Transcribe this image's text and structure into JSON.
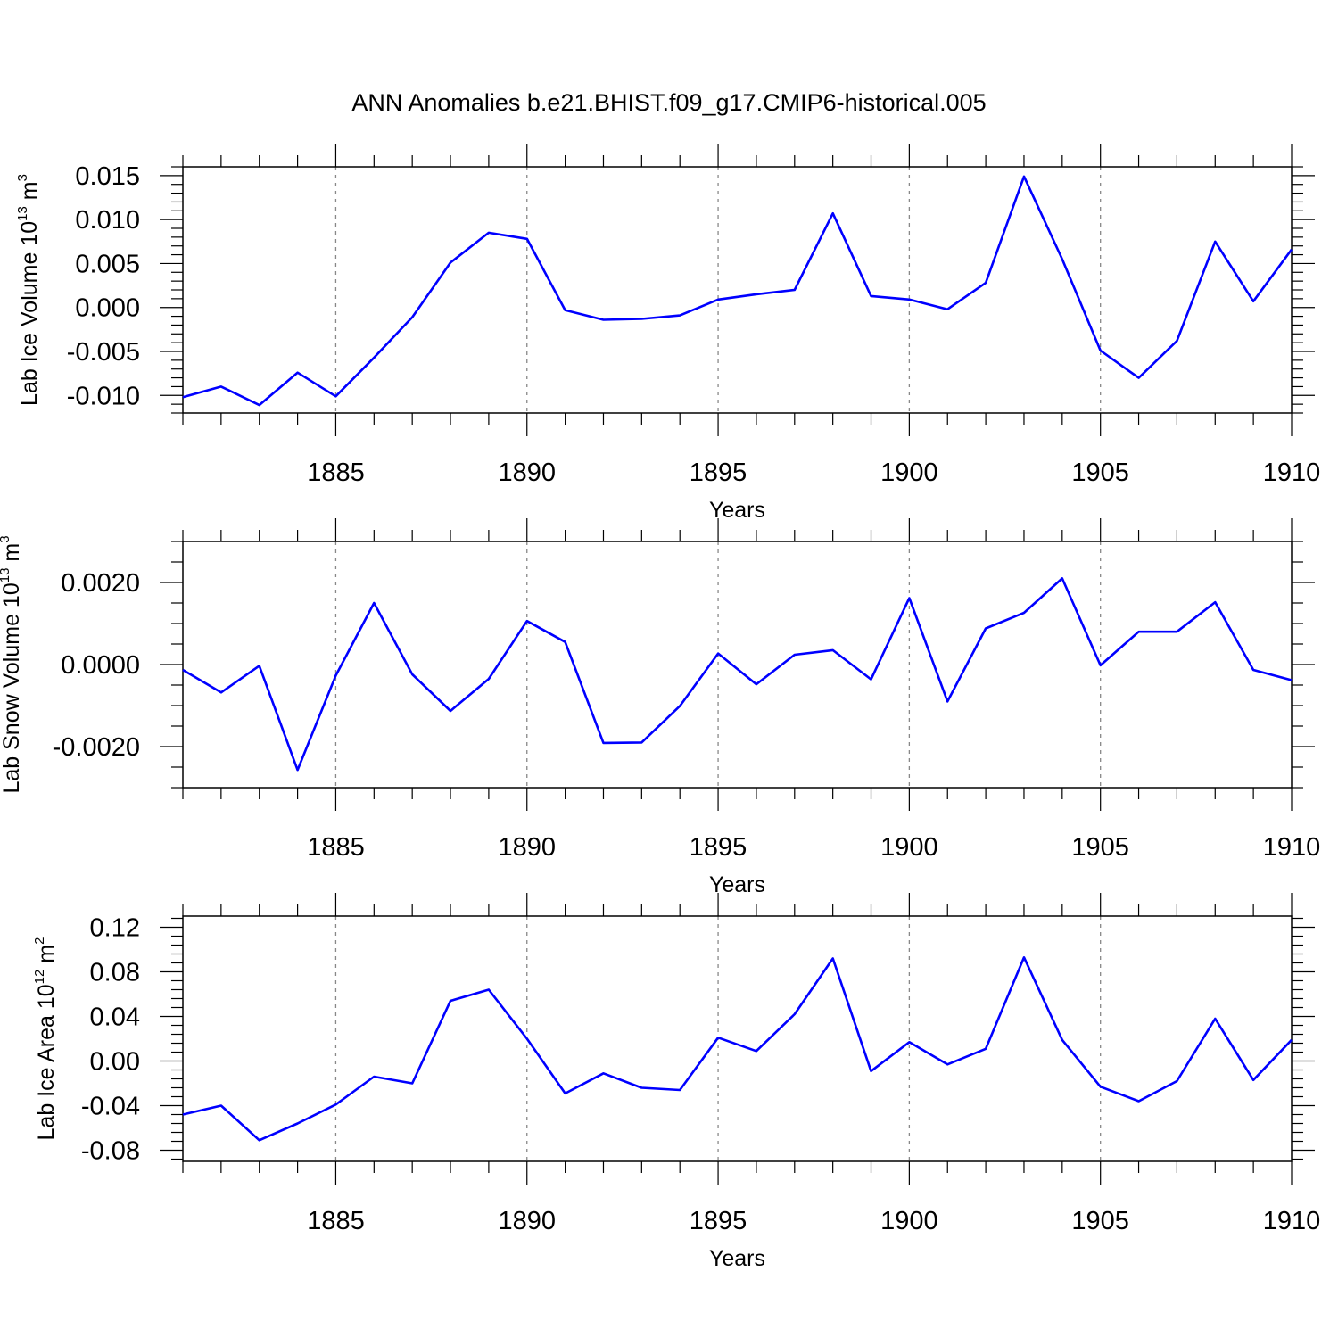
{
  "title": "ANN Anomalies b.e21.BHIST.f09_g17.CMIP6-historical.005",
  "line_color": "#0000ff",
  "chart_data": [
    {
      "type": "line",
      "ylabel": {
        "base": "Lab Ice Volume 10",
        "exp": "13",
        "unit": " m",
        "unit_exp": "3"
      },
      "xlabel": "Years",
      "xlim": [
        1881,
        1910
      ],
      "ylim": [
        -0.012,
        0.016
      ],
      "yticks": [
        -0.01,
        -0.005,
        0.0,
        0.005,
        0.01,
        0.015
      ],
      "ytick_labels": [
        "-0.010",
        "-0.005",
        "0.000",
        "0.005",
        "0.010",
        "0.015"
      ],
      "yminor_step": 0.001,
      "xticks": [
        1885,
        1890,
        1895,
        1900,
        1905,
        1910
      ],
      "xtick_labels": [
        "1885",
        "1890",
        "1895",
        "1900",
        "1905",
        "1910"
      ],
      "grid": "vertical dashed at major x ticks",
      "series": [
        {
          "x": [
            1881,
            1882,
            1883,
            1884,
            1885,
            1886,
            1887,
            1888,
            1889,
            1890,
            1891,
            1892,
            1893,
            1894,
            1895,
            1896,
            1897,
            1898,
            1899,
            1900,
            1901,
            1902,
            1903,
            1904,
            1905,
            1906,
            1907,
            1908,
            1909,
            1910
          ],
          "values": [
            -0.0102,
            -0.009,
            -0.0111,
            -0.0074,
            -0.0101,
            -0.0057,
            -0.0011,
            0.0051,
            0.0085,
            0.0078,
            -0.0003,
            -0.0014,
            -0.0013,
            -0.0009,
            0.0009,
            0.0015,
            0.002,
            0.0107,
            0.0013,
            0.0009,
            -0.0002,
            0.0028,
            0.0149,
            0.0055,
            -0.0049,
            -0.008,
            -0.0038,
            0.0075,
            0.0007,
            0.0066
          ]
        }
      ]
    },
    {
      "type": "line",
      "ylabel": {
        "base": "Lab Snow Volume 10",
        "exp": "13",
        "unit": " m",
        "unit_exp": "3"
      },
      "xlabel": "Years",
      "xlim": [
        1881,
        1910
      ],
      "ylim": [
        -0.003,
        0.003
      ],
      "yticks": [
        -0.002,
        0.0,
        0.002
      ],
      "ytick_labels": [
        "-0.0020",
        "0.0000",
        "0.0020"
      ],
      "yminor_step": 0.0005,
      "xticks": [
        1885,
        1890,
        1895,
        1900,
        1905,
        1910
      ],
      "xtick_labels": [
        "1885",
        "1890",
        "1895",
        "1900",
        "1905",
        "1910"
      ],
      "grid": "vertical dashed at major x ticks",
      "series": [
        {
          "x": [
            1881,
            1882,
            1883,
            1884,
            1885,
            1886,
            1887,
            1888,
            1889,
            1890,
            1891,
            1892,
            1893,
            1894,
            1895,
            1896,
            1897,
            1898,
            1899,
            1900,
            1901,
            1902,
            1903,
            1904,
            1905,
            1906,
            1907,
            1908,
            1909,
            1910
          ],
          "values": [
            -0.00013,
            -0.00068,
            -3e-05,
            -0.00257,
            -0.00027,
            0.0015,
            -0.00024,
            -0.00113,
            -0.00035,
            0.00106,
            0.00055,
            -0.00191,
            -0.0019,
            -0.00101,
            0.00027,
            -0.00048,
            0.00024,
            0.00035,
            -0.00036,
            0.00162,
            -0.0009,
            0.00088,
            0.00126,
            0.0021,
            -2e-05,
            0.0008,
            0.0008,
            0.00152,
            -0.00013,
            -0.00038
          ]
        }
      ]
    },
    {
      "type": "line",
      "ylabel": {
        "base": "Lab Ice Area 10",
        "exp": "12",
        "unit": " m",
        "unit_exp": "2"
      },
      "xlabel": "Years",
      "xlim": [
        1881,
        1910
      ],
      "ylim": [
        -0.09,
        0.13
      ],
      "yticks": [
        -0.08,
        -0.04,
        0.0,
        0.04,
        0.08,
        0.12
      ],
      "ytick_labels": [
        "-0.08",
        "-0.04",
        "0.00",
        "0.04",
        "0.08",
        "0.12"
      ],
      "yminor_step": 0.008,
      "xticks": [
        1885,
        1890,
        1895,
        1900,
        1905,
        1910
      ],
      "xtick_labels": [
        "1885",
        "1890",
        "1895",
        "1900",
        "1905",
        "1910"
      ],
      "grid": "vertical dashed at major x ticks",
      "series": [
        {
          "x": [
            1881,
            1882,
            1883,
            1884,
            1885,
            1886,
            1887,
            1888,
            1889,
            1890,
            1891,
            1892,
            1893,
            1894,
            1895,
            1896,
            1897,
            1898,
            1899,
            1900,
            1901,
            1902,
            1903,
            1904,
            1905,
            1906,
            1907,
            1908,
            1909,
            1910
          ],
          "values": [
            -0.048,
            -0.04,
            -0.071,
            -0.056,
            -0.039,
            -0.014,
            -0.02,
            0.054,
            0.064,
            0.02,
            -0.029,
            -0.011,
            -0.024,
            -0.026,
            0.021,
            0.009,
            0.042,
            0.092,
            -0.009,
            0.017,
            -0.003,
            0.011,
            0.093,
            0.019,
            -0.023,
            -0.036,
            -0.018,
            0.038,
            -0.017,
            0.019
          ]
        }
      ]
    }
  ]
}
